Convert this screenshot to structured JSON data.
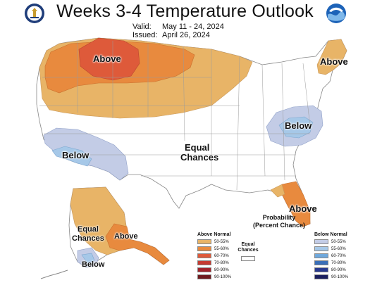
{
  "header": {
    "title": "Weeks 3-4 Temperature Outlook",
    "valid_key": "Valid:",
    "valid_value": "May 11 - 24, 2024",
    "issued_key": "Issued:",
    "issued_value": "April 26, 2024"
  },
  "logos": [
    {
      "name": "doc-seal-icon"
    },
    {
      "name": "noaa-logo-icon"
    }
  ],
  "map_labels": {
    "above_northwest": "Above",
    "above_northeast": "Above",
    "below_southwest": "Below",
    "below_midatlantic": "Below",
    "equal_chances_1": "Equal",
    "equal_chances_2": "Chances",
    "above_florida": "Above",
    "alaska_equal_1": "Equal",
    "alaska_equal_2": "Chances",
    "alaska_above": "Above",
    "alaska_below": "Below"
  },
  "legend": {
    "title_1": "Probability",
    "title_2": "(Percent Chance)",
    "above_header": "Above Normal",
    "below_header": "Below Normal",
    "equal_1": "Equal",
    "equal_2": "Chances",
    "above": [
      {
        "label": "50-55%",
        "color": "#e8b467"
      },
      {
        "label": "55-60%",
        "color": "#e88a3e"
      },
      {
        "label": "60-70%",
        "color": "#de5a3a"
      },
      {
        "label": "70-80%",
        "color": "#c53a30"
      },
      {
        "label": "80-90%",
        "color": "#a0232a"
      },
      {
        "label": "90-100%",
        "color": "#6e1a1e"
      }
    ],
    "below": [
      {
        "label": "50-55%",
        "color": "#c3cce6"
      },
      {
        "label": "55-60%",
        "color": "#a6c8e8"
      },
      {
        "label": "60-70%",
        "color": "#6fa8dc"
      },
      {
        "label": "70-80%",
        "color": "#3a6fb8"
      },
      {
        "label": "80-90%",
        "color": "#283a8f"
      },
      {
        "label": "90-100%",
        "color": "#1b1f5e"
      }
    ]
  },
  "colors": {
    "above_50_55": "#e8b467",
    "above_55_60": "#e88a3e",
    "above_60_70": "#de5a3a",
    "below_50_55": "#c3cce6",
    "below_55_60": "#a6c8e8",
    "equal_chances": "#ffffff",
    "state_border": "#888888"
  }
}
